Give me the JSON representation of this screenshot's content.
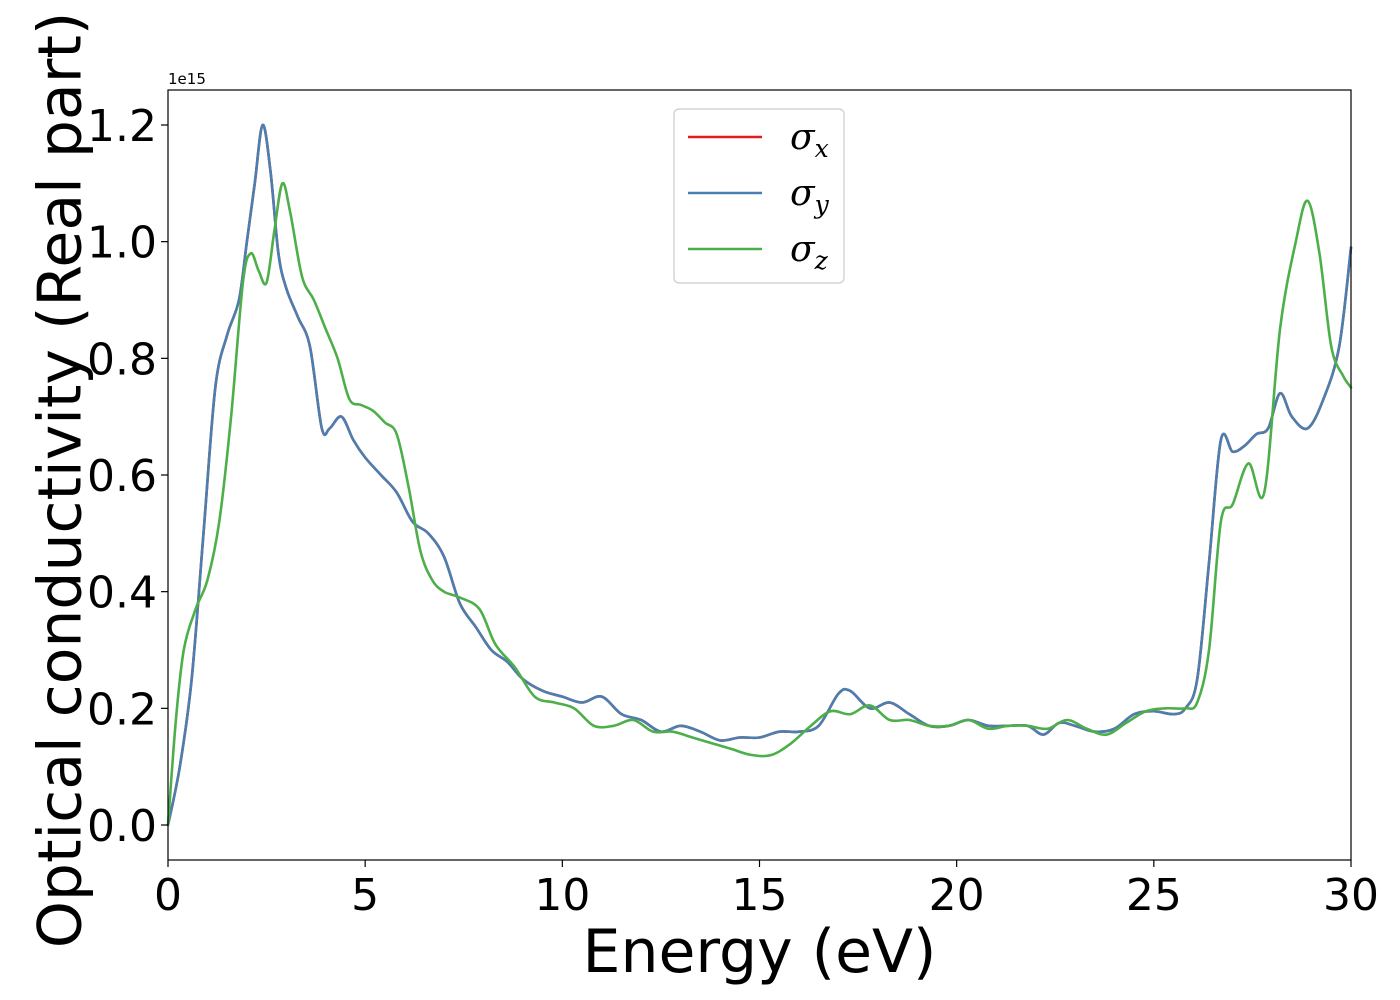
{
  "chart_data": {
    "type": "line",
    "xlabel": "Energy (eV)",
    "ylabel": "Optical conductivity (Real part)",
    "y_offset_label": "1e15",
    "y_multiplier": 1000000000000000.0,
    "xlim": [
      0,
      30
    ],
    "ylim": [
      -0.06,
      1.26
    ],
    "xticks": [
      0,
      5,
      10,
      15,
      20,
      25,
      30
    ],
    "xtick_labels": [
      "0",
      "5",
      "10",
      "15",
      "20",
      "25",
      "30"
    ],
    "yticks": [
      0.0,
      0.2,
      0.4,
      0.6,
      0.8,
      1.0,
      1.2
    ],
    "ytick_labels": [
      "0.0",
      "0.2",
      "0.4",
      "0.6",
      "0.8",
      "1.0",
      "1.2"
    ],
    "grid": false,
    "legend_position": "top-center",
    "series": [
      {
        "name": "σx",
        "legend_symbol": "σ",
        "legend_sub": "x",
        "color": "#e41a1c",
        "x": [
          0,
          0.3,
          0.6,
          0.9,
          1.2,
          1.5,
          1.8,
          2.0,
          2.2,
          2.4,
          2.6,
          2.8,
          3.0,
          3.3,
          3.6,
          3.9,
          4.1,
          4.4,
          4.7,
          5.0,
          5.4,
          5.8,
          6.2,
          6.6,
          7.0,
          7.4,
          7.8,
          8.2,
          8.6,
          9.0,
          9.5,
          10.0,
          10.5,
          11.0,
          11.5,
          12.0,
          12.5,
          13.0,
          13.5,
          14.0,
          14.5,
          15.0,
          15.5,
          16.0,
          16.5,
          17.0,
          17.3,
          17.8,
          18.3,
          18.8,
          19.3,
          19.8,
          20.3,
          20.8,
          21.3,
          21.8,
          22.2,
          22.6,
          23.0,
          23.5,
          24.0,
          24.5,
          25.0,
          25.5,
          25.8,
          26.1,
          26.4,
          26.7,
          27.0,
          27.3,
          27.6,
          27.9,
          28.2,
          28.5,
          28.9,
          29.3,
          29.7,
          30.0
        ],
        "values": [
          0.0,
          0.1,
          0.25,
          0.5,
          0.75,
          0.84,
          0.9,
          1.0,
          1.1,
          1.2,
          1.12,
          0.98,
          0.92,
          0.87,
          0.82,
          0.68,
          0.68,
          0.7,
          0.66,
          0.63,
          0.6,
          0.57,
          0.52,
          0.5,
          0.46,
          0.38,
          0.34,
          0.3,
          0.28,
          0.25,
          0.23,
          0.22,
          0.21,
          0.22,
          0.19,
          0.18,
          0.16,
          0.17,
          0.16,
          0.145,
          0.15,
          0.15,
          0.16,
          0.16,
          0.17,
          0.225,
          0.23,
          0.2,
          0.21,
          0.19,
          0.17,
          0.17,
          0.18,
          0.17,
          0.17,
          0.17,
          0.155,
          0.175,
          0.17,
          0.16,
          0.165,
          0.19,
          0.195,
          0.19,
          0.2,
          0.25,
          0.45,
          0.66,
          0.64,
          0.65,
          0.67,
          0.68,
          0.74,
          0.7,
          0.68,
          0.73,
          0.82,
          0.99
        ]
      },
      {
        "name": "σy",
        "legend_symbol": "σ",
        "legend_sub": "y",
        "color": "#4a7fb0",
        "x": [
          0,
          0.3,
          0.6,
          0.9,
          1.2,
          1.5,
          1.8,
          2.0,
          2.2,
          2.4,
          2.6,
          2.8,
          3.0,
          3.3,
          3.6,
          3.9,
          4.1,
          4.4,
          4.7,
          5.0,
          5.4,
          5.8,
          6.2,
          6.6,
          7.0,
          7.4,
          7.8,
          8.2,
          8.6,
          9.0,
          9.5,
          10.0,
          10.5,
          11.0,
          11.5,
          12.0,
          12.5,
          13.0,
          13.5,
          14.0,
          14.5,
          15.0,
          15.5,
          16.0,
          16.5,
          17.0,
          17.3,
          17.8,
          18.3,
          18.8,
          19.3,
          19.8,
          20.3,
          20.8,
          21.3,
          21.8,
          22.2,
          22.6,
          23.0,
          23.5,
          24.0,
          24.5,
          25.0,
          25.5,
          25.8,
          26.1,
          26.4,
          26.7,
          27.0,
          27.3,
          27.6,
          27.9,
          28.2,
          28.5,
          28.9,
          29.3,
          29.7,
          30.0
        ],
        "values": [
          0.0,
          0.1,
          0.25,
          0.5,
          0.75,
          0.84,
          0.9,
          1.0,
          1.1,
          1.2,
          1.12,
          0.98,
          0.92,
          0.87,
          0.82,
          0.68,
          0.68,
          0.7,
          0.66,
          0.63,
          0.6,
          0.57,
          0.52,
          0.5,
          0.46,
          0.38,
          0.34,
          0.3,
          0.28,
          0.25,
          0.23,
          0.22,
          0.21,
          0.22,
          0.19,
          0.18,
          0.16,
          0.17,
          0.16,
          0.145,
          0.15,
          0.15,
          0.16,
          0.16,
          0.17,
          0.225,
          0.23,
          0.2,
          0.21,
          0.19,
          0.17,
          0.17,
          0.18,
          0.17,
          0.17,
          0.17,
          0.155,
          0.175,
          0.17,
          0.16,
          0.165,
          0.19,
          0.195,
          0.19,
          0.2,
          0.25,
          0.45,
          0.66,
          0.64,
          0.65,
          0.67,
          0.68,
          0.74,
          0.7,
          0.68,
          0.73,
          0.82,
          0.99
        ]
      },
      {
        "name": "σz",
        "legend_symbol": "σ",
        "legend_sub": "z",
        "color": "#4daf4a",
        "x": [
          0,
          0.2,
          0.4,
          0.7,
          1.0,
          1.3,
          1.6,
          1.9,
          2.1,
          2.3,
          2.5,
          2.7,
          2.9,
          3.1,
          3.4,
          3.7,
          4.0,
          4.3,
          4.6,
          4.9,
          5.2,
          5.5,
          5.8,
          6.1,
          6.4,
          6.7,
          7.0,
          7.4,
          7.9,
          8.3,
          8.8,
          9.3,
          9.8,
          10.3,
          10.8,
          11.3,
          11.8,
          12.3,
          12.8,
          13.3,
          13.8,
          14.3,
          14.8,
          15.3,
          15.8,
          16.3,
          16.8,
          17.3,
          17.8,
          18.3,
          18.8,
          19.3,
          19.8,
          20.3,
          20.8,
          21.3,
          21.8,
          22.3,
          22.8,
          23.3,
          23.8,
          24.3,
          24.8,
          25.3,
          25.8,
          26.1,
          26.4,
          26.7,
          27.0,
          27.4,
          27.8,
          28.2,
          28.6,
          28.9,
          29.2,
          29.5,
          29.8,
          30.0
        ],
        "values": [
          0.0,
          0.18,
          0.3,
          0.37,
          0.42,
          0.52,
          0.7,
          0.93,
          0.98,
          0.95,
          0.93,
          1.02,
          1.1,
          1.05,
          0.94,
          0.9,
          0.85,
          0.8,
          0.73,
          0.72,
          0.71,
          0.69,
          0.67,
          0.58,
          0.47,
          0.42,
          0.4,
          0.39,
          0.37,
          0.31,
          0.27,
          0.22,
          0.21,
          0.2,
          0.17,
          0.17,
          0.18,
          0.16,
          0.16,
          0.15,
          0.14,
          0.13,
          0.12,
          0.12,
          0.14,
          0.17,
          0.195,
          0.19,
          0.205,
          0.18,
          0.18,
          0.17,
          0.17,
          0.18,
          0.165,
          0.17,
          0.17,
          0.165,
          0.18,
          0.165,
          0.155,
          0.175,
          0.195,
          0.2,
          0.2,
          0.21,
          0.3,
          0.52,
          0.55,
          0.62,
          0.57,
          0.85,
          1.0,
          1.07,
          0.98,
          0.82,
          0.77,
          0.75
        ]
      }
    ]
  }
}
